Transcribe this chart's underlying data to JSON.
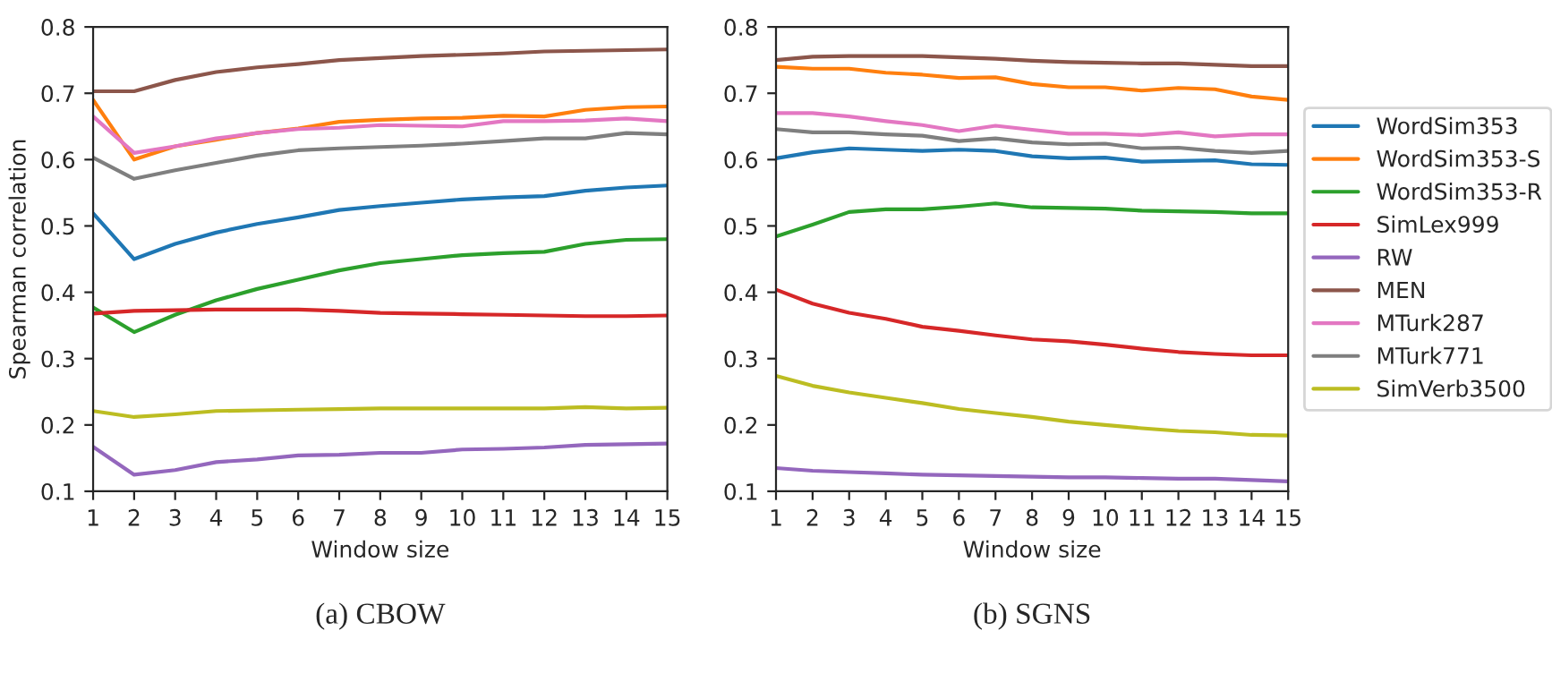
{
  "chart_data": [
    {
      "type": "line",
      "title": "(a) CBOW",
      "xlabel": "Window size",
      "ylabel": "Spearman correlation",
      "x": [
        1,
        2,
        3,
        4,
        5,
        6,
        7,
        8,
        9,
        10,
        11,
        12,
        13,
        14,
        15
      ],
      "xlim": [
        1,
        15
      ],
      "xticks": [
        1,
        2,
        3,
        4,
        5,
        6,
        7,
        8,
        9,
        10,
        11,
        12,
        13,
        14,
        15
      ],
      "ylim": [
        0.1,
        0.8
      ],
      "yticks": [
        0.1,
        0.2,
        0.3,
        0.4,
        0.5,
        0.6,
        0.7,
        0.8
      ],
      "grid": false,
      "legend": false,
      "series": [
        {
          "color": "#1f77b4",
          "values": [
            0.519,
            0.45,
            0.473,
            0.49,
            0.503,
            0.513,
            0.524,
            0.53,
            0.535,
            0.54,
            0.543,
            0.545,
            0.553,
            0.558,
            0.561
          ]
        },
        {
          "color": "#ff7f0e",
          "values": [
            0.69,
            0.6,
            0.62,
            0.63,
            0.64,
            0.647,
            0.657,
            0.66,
            0.662,
            0.663,
            0.666,
            0.665,
            0.675,
            0.679,
            0.68
          ]
        },
        {
          "color": "#2ca02c",
          "values": [
            0.377,
            0.34,
            0.366,
            0.388,
            0.405,
            0.419,
            0.433,
            0.444,
            0.45,
            0.456,
            0.459,
            0.461,
            0.473,
            0.479,
            0.48
          ]
        },
        {
          "color": "#d62728",
          "values": [
            0.368,
            0.372,
            0.373,
            0.374,
            0.374,
            0.374,
            0.372,
            0.369,
            0.368,
            0.367,
            0.366,
            0.365,
            0.364,
            0.364,
            0.365
          ]
        },
        {
          "color": "#9467bd",
          "values": [
            0.167,
            0.125,
            0.132,
            0.144,
            0.148,
            0.154,
            0.155,
            0.158,
            0.158,
            0.163,
            0.164,
            0.166,
            0.17,
            0.171,
            0.172
          ]
        },
        {
          "color": "#8c564b",
          "values": [
            0.703,
            0.703,
            0.72,
            0.732,
            0.739,
            0.744,
            0.75,
            0.753,
            0.756,
            0.758,
            0.76,
            0.763,
            0.764,
            0.765,
            0.766
          ]
        },
        {
          "color": "#e377c2",
          "values": [
            0.665,
            0.61,
            0.62,
            0.632,
            0.64,
            0.646,
            0.648,
            0.652,
            0.651,
            0.65,
            0.658,
            0.658,
            0.659,
            0.662,
            0.658
          ]
        },
        {
          "color": "#7f7f7f",
          "values": [
            0.603,
            0.571,
            0.584,
            0.595,
            0.606,
            0.614,
            0.617,
            0.619,
            0.621,
            0.624,
            0.628,
            0.632,
            0.632,
            0.64,
            0.638
          ]
        },
        {
          "color": "#bcbd22",
          "values": [
            0.221,
            0.212,
            0.216,
            0.221,
            0.222,
            0.223,
            0.224,
            0.225,
            0.225,
            0.225,
            0.225,
            0.225,
            0.227,
            0.225,
            0.226
          ]
        }
      ]
    },
    {
      "type": "line",
      "title": "(b) SGNS",
      "xlabel": "Window size",
      "x": [
        1,
        2,
        3,
        4,
        5,
        6,
        7,
        8,
        9,
        10,
        11,
        12,
        13,
        14,
        15
      ],
      "xlim": [
        1,
        15
      ],
      "xticks": [
        1,
        2,
        3,
        4,
        5,
        6,
        7,
        8,
        9,
        10,
        11,
        12,
        13,
        14,
        15
      ],
      "ylim": [
        0.1,
        0.8
      ],
      "yticks": [
        0.1,
        0.2,
        0.3,
        0.4,
        0.5,
        0.6,
        0.7,
        0.8
      ],
      "grid": false,
      "legend": "right",
      "series": [
        {
          "name": "WordSim353",
          "color": "#1f77b4",
          "values": [
            0.602,
            0.611,
            0.617,
            0.615,
            0.613,
            0.615,
            0.613,
            0.605,
            0.602,
            0.603,
            0.597,
            0.598,
            0.599,
            0.593,
            0.592
          ]
        },
        {
          "name": "WordSim353-S",
          "color": "#ff7f0e",
          "values": [
            0.74,
            0.737,
            0.737,
            0.731,
            0.728,
            0.723,
            0.724,
            0.714,
            0.709,
            0.709,
            0.704,
            0.708,
            0.706,
            0.695,
            0.69
          ]
        },
        {
          "name": "WordSim353-R",
          "color": "#2ca02c",
          "values": [
            0.484,
            0.502,
            0.521,
            0.525,
            0.525,
            0.529,
            0.534,
            0.528,
            0.527,
            0.526,
            0.523,
            0.522,
            0.521,
            0.519,
            0.519
          ]
        },
        {
          "name": "SimLex999",
          "color": "#d62728",
          "values": [
            0.404,
            0.383,
            0.369,
            0.36,
            0.348,
            0.342,
            0.335,
            0.329,
            0.326,
            0.321,
            0.315,
            0.31,
            0.307,
            0.305,
            0.305
          ]
        },
        {
          "name": "RW",
          "color": "#9467bd",
          "values": [
            0.135,
            0.131,
            0.129,
            0.127,
            0.125,
            0.124,
            0.123,
            0.122,
            0.121,
            0.121,
            0.12,
            0.119,
            0.119,
            0.117,
            0.115
          ]
        },
        {
          "name": "MEN",
          "color": "#8c564b",
          "values": [
            0.75,
            0.755,
            0.756,
            0.756,
            0.756,
            0.754,
            0.752,
            0.749,
            0.747,
            0.746,
            0.745,
            0.745,
            0.743,
            0.741,
            0.741
          ]
        },
        {
          "name": "MTurk287",
          "color": "#e377c2",
          "values": [
            0.67,
            0.67,
            0.665,
            0.658,
            0.652,
            0.643,
            0.651,
            0.645,
            0.639,
            0.639,
            0.637,
            0.641,
            0.635,
            0.638,
            0.638
          ]
        },
        {
          "name": "MTurk771",
          "color": "#7f7f7f",
          "values": [
            0.646,
            0.641,
            0.641,
            0.638,
            0.636,
            0.628,
            0.632,
            0.626,
            0.623,
            0.624,
            0.617,
            0.618,
            0.613,
            0.61,
            0.613
          ]
        },
        {
          "name": "SimVerb3500",
          "color": "#bcbd22",
          "values": [
            0.274,
            0.259,
            0.249,
            0.241,
            0.233,
            0.224,
            0.218,
            0.212,
            0.205,
            0.2,
            0.195,
            0.191,
            0.189,
            0.185,
            0.184
          ]
        }
      ]
    }
  ]
}
